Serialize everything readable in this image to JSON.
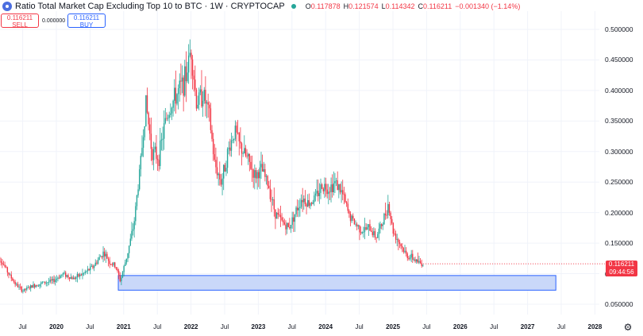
{
  "header": {
    "title": "Ratio Total Market Cap Excluding Top 10 to BTC · 1W · CRYPTOCAP",
    "ohlc": [
      {
        "k": "O",
        "v": "0.117878"
      },
      {
        "k": "H",
        "v": "0.121574"
      },
      {
        "k": "L",
        "v": "0.114342"
      },
      {
        "k": "C",
        "v": "0.116211"
      },
      {
        "k": "",
        "v": "−0.001340 (−1.14%)"
      }
    ]
  },
  "trade": {
    "sell_price": "0.116211",
    "sell_label": "SELL",
    "spread": "0.000000",
    "buy_price": "0.116211",
    "buy_label": "BUY"
  },
  "price_tag": {
    "price": "0.116211",
    "countdown": "09:44:56"
  },
  "colors": {
    "up": "#26a69a",
    "down": "#f23645",
    "zone_fill": "#c9d8f9",
    "zone_border": "#2962ff"
  },
  "chart_data": {
    "type": "candlestick",
    "title": "Ratio Total Market Cap Excluding Top 10 to BTC",
    "interval": "1W",
    "ylim": [
      0.04,
      0.52
    ],
    "y_ticks": [
      "0.050000",
      "0.100000",
      "0.150000",
      "0.200000",
      "0.250000",
      "0.300000",
      "0.350000",
      "0.400000",
      "0.450000",
      "0.500000"
    ],
    "x_ticks": [
      {
        "label": "Jul",
        "t": 2019.5
      },
      {
        "label": "2020",
        "t": 2020.0,
        "bold": true
      },
      {
        "label": "Jul",
        "t": 2020.5
      },
      {
        "label": "2021",
        "t": 2021.0,
        "bold": true
      },
      {
        "label": "Jul",
        "t": 2021.5
      },
      {
        "label": "2022",
        "t": 2022.0,
        "bold": true
      },
      {
        "label": "Jul",
        "t": 2022.5
      },
      {
        "label": "2023",
        "t": 2023.0,
        "bold": true
      },
      {
        "label": "Jul",
        "t": 2023.5
      },
      {
        "label": "2024",
        "t": 2024.0,
        "bold": true
      },
      {
        "label": "Jul",
        "t": 2024.5
      },
      {
        "label": "2025",
        "t": 2025.0,
        "bold": true
      },
      {
        "label": "Jul",
        "t": 2025.5
      },
      {
        "label": "2026",
        "t": 2026.0,
        "bold": true
      },
      {
        "label": "Jul",
        "t": 2026.5
      },
      {
        "label": "2027",
        "t": 2027.0,
        "bold": true
      },
      {
        "label": "Jul",
        "t": 2027.5
      },
      {
        "label": "2028",
        "t": 2028.0,
        "bold": true
      }
    ],
    "x_range": [
      2019.1,
      2028.3
    ],
    "price_path": [
      [
        2019.1,
        0.135
      ],
      [
        2019.2,
        0.118
      ],
      [
        2019.3,
        0.098
      ],
      [
        2019.4,
        0.082
      ],
      [
        2019.5,
        0.072
      ],
      [
        2019.65,
        0.08
      ],
      [
        2019.8,
        0.085
      ],
      [
        2019.95,
        0.088
      ],
      [
        2020.1,
        0.1
      ],
      [
        2020.25,
        0.092
      ],
      [
        2020.4,
        0.1
      ],
      [
        2020.55,
        0.112
      ],
      [
        2020.7,
        0.135
      ],
      [
        2020.8,
        0.118
      ],
      [
        2020.88,
        0.112
      ],
      [
        2020.95,
        0.088
      ],
      [
        2021.05,
        0.13
      ],
      [
        2021.15,
        0.18
      ],
      [
        2021.25,
        0.28
      ],
      [
        2021.33,
        0.38
      ],
      [
        2021.42,
        0.3
      ],
      [
        2021.52,
        0.29
      ],
      [
        2021.62,
        0.35
      ],
      [
        2021.72,
        0.38
      ],
      [
        2021.82,
        0.4
      ],
      [
        2021.92,
        0.42
      ],
      [
        2022.0,
        0.47
      ],
      [
        2022.08,
        0.38
      ],
      [
        2022.18,
        0.395
      ],
      [
        2022.27,
        0.36
      ],
      [
        2022.35,
        0.28
      ],
      [
        2022.45,
        0.25
      ],
      [
        2022.55,
        0.3
      ],
      [
        2022.65,
        0.335
      ],
      [
        2022.72,
        0.31
      ],
      [
        2022.85,
        0.285
      ],
      [
        2022.95,
        0.26
      ],
      [
        2023.05,
        0.27
      ],
      [
        2023.15,
        0.245
      ],
      [
        2023.25,
        0.2
      ],
      [
        2023.35,
        0.185
      ],
      [
        2023.45,
        0.175
      ],
      [
        2023.55,
        0.2
      ],
      [
        2023.65,
        0.225
      ],
      [
        2023.75,
        0.215
      ],
      [
        2023.85,
        0.225
      ],
      [
        2023.95,
        0.245
      ],
      [
        2024.05,
        0.24
      ],
      [
        2024.15,
        0.25
      ],
      [
        2024.25,
        0.23
      ],
      [
        2024.35,
        0.195
      ],
      [
        2024.45,
        0.18
      ],
      [
        2024.55,
        0.17
      ],
      [
        2024.65,
        0.175
      ],
      [
        2024.75,
        0.16
      ],
      [
        2024.85,
        0.185
      ],
      [
        2024.93,
        0.215
      ],
      [
        2025.0,
        0.17
      ],
      [
        2025.1,
        0.15
      ],
      [
        2025.2,
        0.13
      ],
      [
        2025.3,
        0.125
      ],
      [
        2025.38,
        0.118
      ],
      [
        2025.45,
        0.116
      ]
    ],
    "last_price": 0.116211,
    "support_zone": {
      "y_range": [
        0.073,
        0.097
      ],
      "x_range": [
        2020.92,
        2027.42
      ]
    }
  }
}
